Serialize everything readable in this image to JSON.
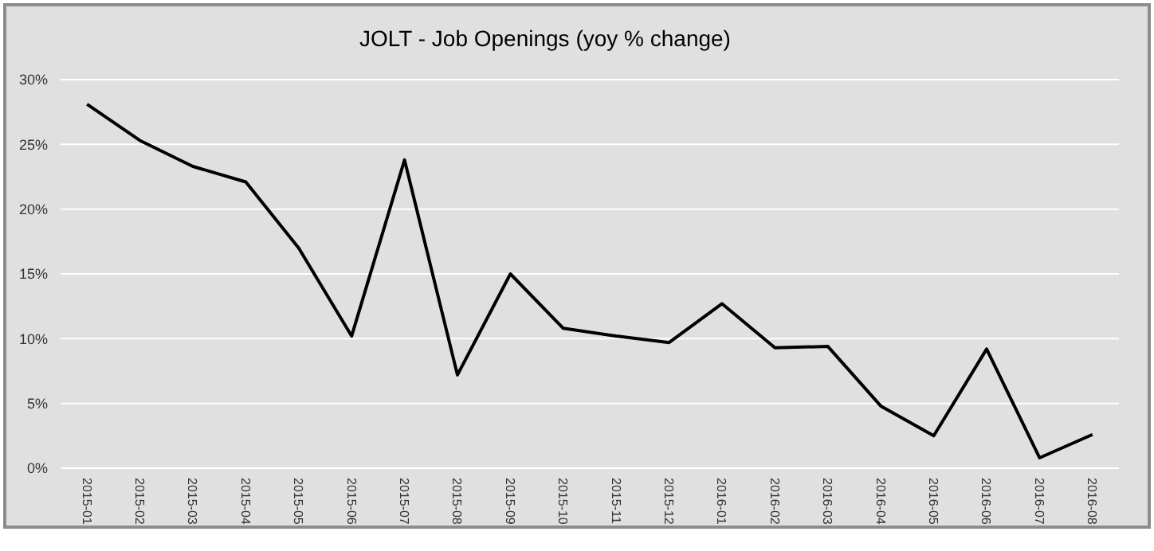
{
  "chart_data": {
    "type": "line",
    "title": "JOLT - Job Openings (yoy % change)",
    "categories": [
      "2015-01",
      "2015-02",
      "2015-03",
      "2015-04",
      "2015-05",
      "2015-06",
      "2015-07",
      "2015-08",
      "2015-09",
      "2015-10",
      "2015-11",
      "2015-12",
      "2016-01",
      "2016-02",
      "2016-03",
      "2016-04",
      "2016-05",
      "2016-06",
      "2016-07",
      "2016-08"
    ],
    "series": [
      {
        "color": "#000000",
        "values": [
          28.1,
          25.3,
          23.3,
          22.1,
          17.0,
          10.2,
          23.8,
          7.2,
          15.0,
          10.8,
          10.2,
          9.7,
          12.7,
          9.3,
          9.4,
          4.8,
          2.5,
          9.2,
          0.8,
          2.6
        ]
      }
    ],
    "ylim": [
      0,
      30
    ],
    "yticks": [
      {
        "value": 0,
        "label": "0%"
      },
      {
        "value": 5,
        "label": "5%"
      },
      {
        "value": 10,
        "label": "10%"
      },
      {
        "value": 15,
        "label": "15%"
      },
      {
        "value": 20,
        "label": "20%"
      },
      {
        "value": 25,
        "label": "25%"
      },
      {
        "value": 30,
        "label": "30%"
      }
    ],
    "grid": "y",
    "marker": "none",
    "line_style": "solid"
  }
}
